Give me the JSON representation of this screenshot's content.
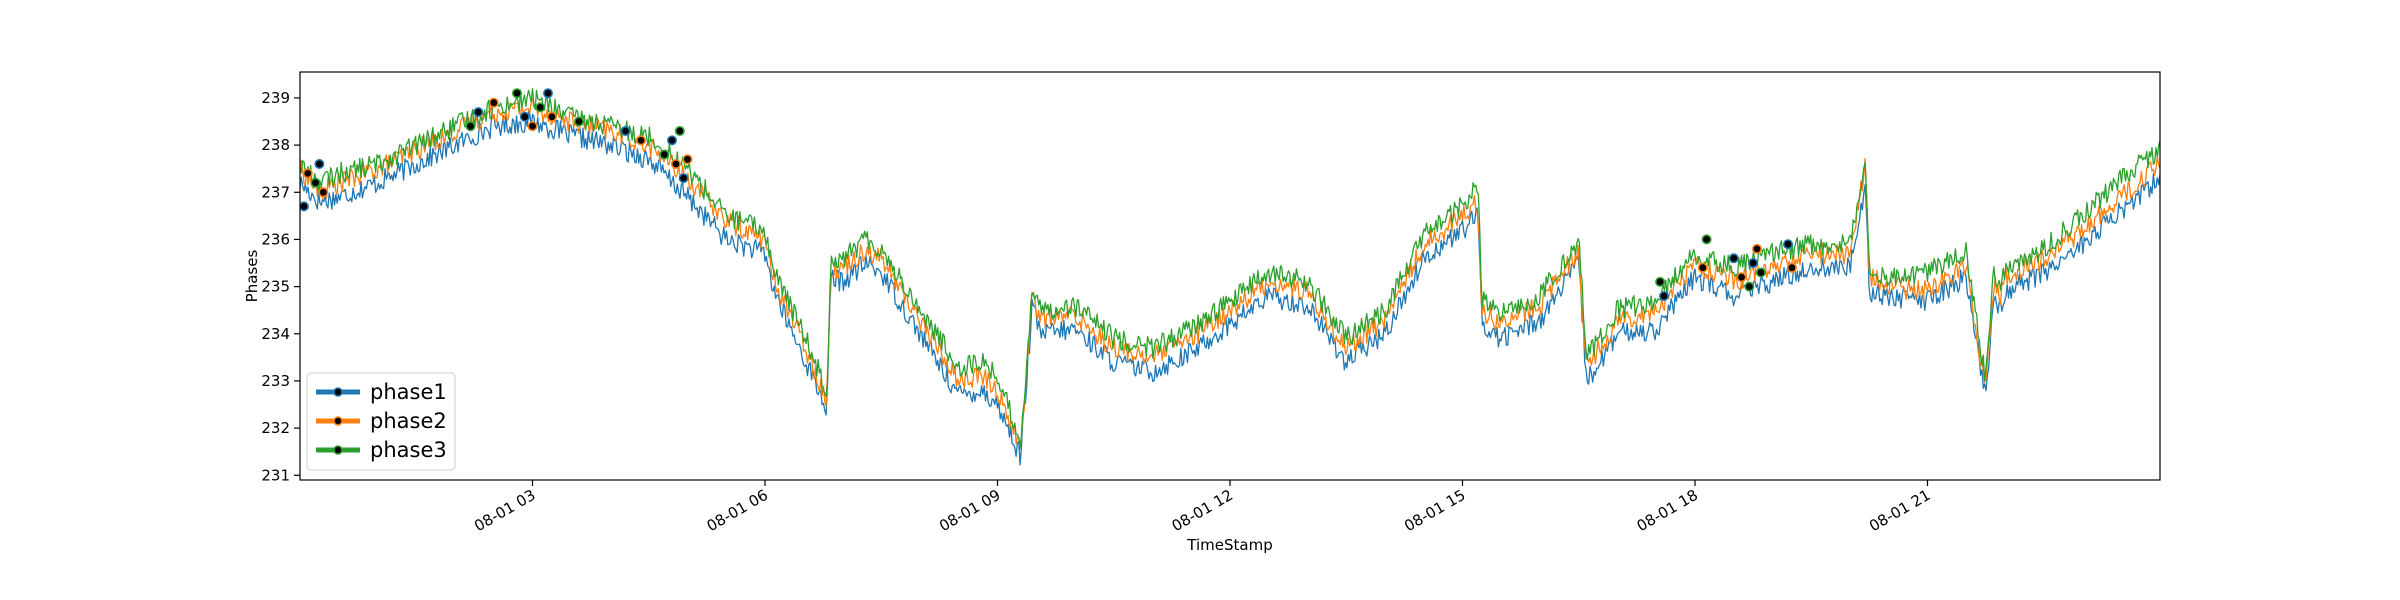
{
  "chart_data": {
    "type": "line",
    "title": "",
    "xlabel": "TimeStamp",
    "ylabel": "Phases",
    "x_start": "08-01 00:00",
    "x_end": "08-01 23:59",
    "xlim_hours": [
      0,
      24
    ],
    "ylim": [
      230.9,
      239.55
    ],
    "grid": false,
    "legend_position": "lower-left",
    "x_ticks": [
      {
        "value": 3,
        "label": "08-01 03"
      },
      {
        "value": 6,
        "label": "08-01 06"
      },
      {
        "value": 9,
        "label": "08-01 09"
      },
      {
        "value": 12,
        "label": "08-01 12"
      },
      {
        "value": 15,
        "label": "08-01 15"
      },
      {
        "value": 18,
        "label": "08-01 18"
      },
      {
        "value": 21,
        "label": "08-01 21"
      }
    ],
    "y_ticks": [
      {
        "value": 231,
        "label": "231"
      },
      {
        "value": 232,
        "label": "232"
      },
      {
        "value": 233,
        "label": "233"
      },
      {
        "value": 234,
        "label": "234"
      },
      {
        "value": 235,
        "label": "235"
      },
      {
        "value": 236,
        "label": "236"
      },
      {
        "value": 237,
        "label": "237"
      },
      {
        "value": 238,
        "label": "238"
      },
      {
        "value": 239,
        "label": "239"
      }
    ],
    "x_hours": [
      0,
      0.25,
      0.5,
      1,
      1.5,
      2,
      2.5,
      3,
      3.5,
      4,
      4.5,
      5,
      5.5,
      6,
      6.1,
      6.3,
      6.5,
      6.8,
      6.85,
      7,
      7.3,
      7.5,
      8,
      8.5,
      8.8,
      9,
      9.3,
      9.45,
      9.55,
      10,
      10.5,
      11,
      11.5,
      12,
      12.5,
      13,
      13.5,
      14,
      14.5,
      15,
      15.2,
      15.25,
      15.5,
      16,
      16.5,
      16.6,
      16.9,
      17,
      17.5,
      18,
      18.5,
      19,
      19.5,
      20,
      20.2,
      20.25,
      20.5,
      21,
      21.5,
      21.75,
      21.85,
      21.95,
      22,
      22.5,
      23,
      23.5,
      24
    ],
    "series": [
      {
        "name": "phase1",
        "color": "#1f77b4",
        "values": [
          237.2,
          236.8,
          236.9,
          237.2,
          237.6,
          238.0,
          238.4,
          238.5,
          238.2,
          238.0,
          237.7,
          236.9,
          236.0,
          235.7,
          235.0,
          234.2,
          233.5,
          232.4,
          235.2,
          235.1,
          235.5,
          235.3,
          234.0,
          232.7,
          232.8,
          232.5,
          231.4,
          234.6,
          234.0,
          234.1,
          233.4,
          233.2,
          233.6,
          234.2,
          234.8,
          234.6,
          233.4,
          234.0,
          235.6,
          236.2,
          236.5,
          234.2,
          233.9,
          234.3,
          235.5,
          233.0,
          233.7,
          234.0,
          234.1,
          235.2,
          234.8,
          235.1,
          235.4,
          235.4,
          237.2,
          234.9,
          234.8,
          234.7,
          235.2,
          232.6,
          234.8,
          234.5,
          234.9,
          235.3,
          235.9,
          236.6,
          237.3
        ]
      },
      {
        "name": "phase2",
        "color": "#ff7f0e",
        "values": [
          237.5,
          237.0,
          237.2,
          237.5,
          237.9,
          238.3,
          238.7,
          238.8,
          238.5,
          238.3,
          238.0,
          237.3,
          236.4,
          236.0,
          235.2,
          234.5,
          233.8,
          232.6,
          235.4,
          235.4,
          235.8,
          235.6,
          234.3,
          233.0,
          233.1,
          232.8,
          231.6,
          234.9,
          234.3,
          234.4,
          233.7,
          233.5,
          233.9,
          234.5,
          235.1,
          234.9,
          233.7,
          234.3,
          235.9,
          236.5,
          236.8,
          234.5,
          234.2,
          234.6,
          235.8,
          233.3,
          234.0,
          234.3,
          234.5,
          235.5,
          235.1,
          235.4,
          235.7,
          235.7,
          237.6,
          235.2,
          235.0,
          234.9,
          235.5,
          232.8,
          235.1,
          234.8,
          235.2,
          235.6,
          236.2,
          236.9,
          237.6
        ]
      },
      {
        "name": "phase3",
        "color": "#2ca02c",
        "values": [
          237.6,
          237.2,
          237.4,
          237.6,
          238.0,
          238.4,
          238.8,
          239.0,
          238.6,
          238.4,
          238.2,
          237.5,
          236.5,
          236.2,
          235.4,
          234.7,
          234.0,
          232.8,
          235.6,
          235.6,
          236.0,
          235.8,
          234.5,
          233.3,
          233.4,
          233.1,
          231.7,
          235.0,
          234.5,
          234.6,
          233.9,
          233.7,
          234.1,
          234.7,
          235.3,
          235.1,
          233.9,
          234.5,
          236.1,
          236.7,
          237.2,
          234.7,
          234.4,
          234.8,
          236.0,
          233.5,
          234.2,
          234.5,
          234.7,
          235.7,
          235.4,
          235.7,
          235.9,
          235.9,
          237.8,
          235.4,
          235.2,
          235.3,
          235.8,
          233.0,
          235.3,
          235.0,
          235.4,
          235.8,
          236.5,
          237.3,
          237.9
        ]
      }
    ],
    "marker_points": [
      {
        "x": 0.05,
        "y": 236.7
      },
      {
        "x": 0.1,
        "y": 237.4
      },
      {
        "x": 0.2,
        "y": 237.2
      },
      {
        "x": 0.25,
        "y": 237.6
      },
      {
        "x": 0.3,
        "y": 237.0
      },
      {
        "x": 2.2,
        "y": 238.4
      },
      {
        "x": 2.3,
        "y": 238.7
      },
      {
        "x": 2.5,
        "y": 238.9
      },
      {
        "x": 2.8,
        "y": 239.1
      },
      {
        "x": 2.9,
        "y": 238.6
      },
      {
        "x": 3.0,
        "y": 238.4
      },
      {
        "x": 3.1,
        "y": 238.8
      },
      {
        "x": 3.2,
        "y": 239.1
      },
      {
        "x": 3.25,
        "y": 238.6
      },
      {
        "x": 3.6,
        "y": 238.5
      },
      {
        "x": 4.2,
        "y": 238.3
      },
      {
        "x": 4.4,
        "y": 238.1
      },
      {
        "x": 4.7,
        "y": 237.8
      },
      {
        "x": 4.8,
        "y": 238.1
      },
      {
        "x": 4.85,
        "y": 237.6
      },
      {
        "x": 4.9,
        "y": 238.3
      },
      {
        "x": 4.95,
        "y": 237.3
      },
      {
        "x": 5.0,
        "y": 237.7
      },
      {
        "x": 17.55,
        "y": 235.1
      },
      {
        "x": 17.6,
        "y": 234.8
      },
      {
        "x": 18.1,
        "y": 235.4
      },
      {
        "x": 18.15,
        "y": 236.0
      },
      {
        "x": 18.5,
        "y": 235.6
      },
      {
        "x": 18.6,
        "y": 235.2
      },
      {
        "x": 18.7,
        "y": 235.0
      },
      {
        "x": 18.75,
        "y": 235.5
      },
      {
        "x": 18.8,
        "y": 235.8
      },
      {
        "x": 18.85,
        "y": 235.3
      },
      {
        "x": 19.2,
        "y": 235.9
      },
      {
        "x": 19.25,
        "y": 235.4
      }
    ]
  }
}
